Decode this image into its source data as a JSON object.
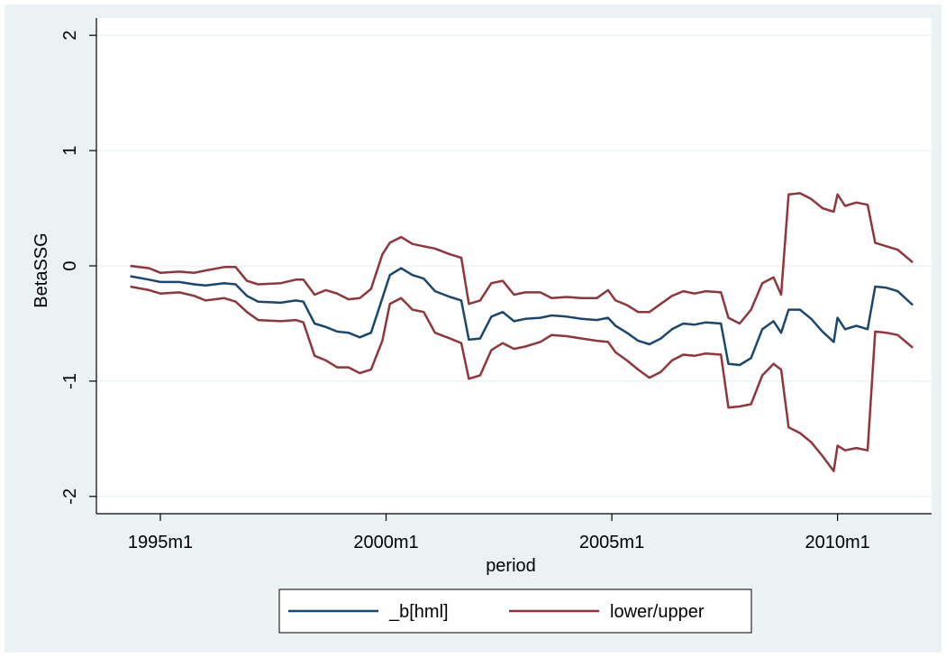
{
  "chart_data": {
    "type": "line",
    "title": "",
    "xlabel": "period",
    "ylabel": "BetaSSG",
    "x_ticks": [
      "1995m1",
      "2000m1",
      "2005m1",
      "2010m1"
    ],
    "y_ticks": [
      "-2",
      "-1",
      "0",
      "1",
      "2"
    ],
    "xlim": [
      "1993m8",
      "2012m2"
    ],
    "ylim": [
      -2.15,
      2.15
    ],
    "grid": "horizontal",
    "legend_position": "bottom",
    "legend": [
      "_b[hml]",
      "lower/upper"
    ],
    "series": [
      {
        "name": "_b[hml]",
        "color": "#1a476f",
        "points": [
          [
            "1994m5",
            -0.09
          ],
          [
            "1994m10",
            -0.12
          ],
          [
            "1995m1",
            -0.14
          ],
          [
            "1995m6",
            -0.14
          ],
          [
            "1995m10",
            -0.16
          ],
          [
            "1996m1",
            -0.17
          ],
          [
            "1996m6",
            -0.15
          ],
          [
            "1996m9",
            -0.16
          ],
          [
            "1996m12",
            -0.26
          ],
          [
            "1997m3",
            -0.31
          ],
          [
            "1997m9",
            -0.32
          ],
          [
            "1998m1",
            -0.3
          ],
          [
            "1998m3",
            -0.31
          ],
          [
            "1998m6",
            -0.5
          ],
          [
            "1998m9",
            -0.53
          ],
          [
            "1998m12",
            -0.57
          ],
          [
            "1999m3",
            -0.58
          ],
          [
            "1999m6",
            -0.62
          ],
          [
            "1999m9",
            -0.58
          ],
          [
            "1999m12",
            -0.28
          ],
          [
            "2000m2",
            -0.08
          ],
          [
            "2000m5",
            -0.02
          ],
          [
            "2000m8",
            -0.08
          ],
          [
            "2000m11",
            -0.11
          ],
          [
            "2001m2",
            -0.22
          ],
          [
            "2001m6",
            -0.27
          ],
          [
            "2001m9",
            -0.3
          ],
          [
            "2001m11",
            -0.64
          ],
          [
            "2002m2",
            -0.63
          ],
          [
            "2002m5",
            -0.44
          ],
          [
            "2002m8",
            -0.4
          ],
          [
            "2002m11",
            -0.48
          ],
          [
            "2003m2",
            -0.46
          ],
          [
            "2003m6",
            -0.45
          ],
          [
            "2003m9",
            -0.43
          ],
          [
            "2004m1",
            -0.44
          ],
          [
            "2004m5",
            -0.46
          ],
          [
            "2004m9",
            -0.47
          ],
          [
            "2004m12",
            -0.45
          ],
          [
            "2005m2",
            -0.52
          ],
          [
            "2005m5",
            -0.58
          ],
          [
            "2005m8",
            -0.65
          ],
          [
            "2005m11",
            -0.68
          ],
          [
            "2006m2",
            -0.63
          ],
          [
            "2006m5",
            -0.55
          ],
          [
            "2006m8",
            -0.5
          ],
          [
            "2006m11",
            -0.51
          ],
          [
            "2007m2",
            -0.49
          ],
          [
            "2007m6",
            -0.5
          ],
          [
            "2007m8",
            -0.85
          ],
          [
            "2007m11",
            -0.86
          ],
          [
            "2008m2",
            -0.8
          ],
          [
            "2008m5",
            -0.55
          ],
          [
            "2008m8",
            -0.48
          ],
          [
            "2008m10",
            -0.58
          ],
          [
            "2008m12",
            -0.38
          ],
          [
            "2009m3",
            -0.38
          ],
          [
            "2009m6",
            -0.46
          ],
          [
            "2009m9",
            -0.57
          ],
          [
            "2009m12",
            -0.66
          ],
          [
            "2010m1",
            -0.45
          ],
          [
            "2010m3",
            -0.55
          ],
          [
            "2010m6",
            -0.52
          ],
          [
            "2010m9",
            -0.55
          ],
          [
            "2010m11",
            -0.18
          ],
          [
            "2011m2",
            -0.19
          ],
          [
            "2011m5",
            -0.22
          ],
          [
            "2011m9",
            -0.34
          ]
        ]
      },
      {
        "name": "lower/upper",
        "color": "#90353b",
        "points": [
          [
            "1994m5",
            0.0
          ],
          [
            "1994m10",
            -0.02
          ],
          [
            "1995m1",
            -0.06
          ],
          [
            "1995m6",
            -0.05
          ],
          [
            "1995m10",
            -0.06
          ],
          [
            "1996m1",
            -0.04
          ],
          [
            "1996m6",
            -0.01
          ],
          [
            "1996m9",
            -0.01
          ],
          [
            "1996m12",
            -0.13
          ],
          [
            "1997m3",
            -0.16
          ],
          [
            "1997m9",
            -0.15
          ],
          [
            "1998m1",
            -0.12
          ],
          [
            "1998m3",
            -0.12
          ],
          [
            "1998m6",
            -0.25
          ],
          [
            "1998m9",
            -0.21
          ],
          [
            "1998m12",
            -0.24
          ],
          [
            "1999m3",
            -0.29
          ],
          [
            "1999m6",
            -0.28
          ],
          [
            "1999m9",
            -0.2
          ],
          [
            "1999m12",
            0.1
          ],
          [
            "2000m2",
            0.2
          ],
          [
            "2000m5",
            0.25
          ],
          [
            "2000m8",
            0.19
          ],
          [
            "2000m11",
            0.17
          ],
          [
            "2001m2",
            0.15
          ],
          [
            "2001m6",
            0.1
          ],
          [
            "2001m9",
            0.07
          ],
          [
            "2001m11",
            -0.33
          ],
          [
            "2002m2",
            -0.3
          ],
          [
            "2002m5",
            -0.15
          ],
          [
            "2002m8",
            -0.13
          ],
          [
            "2002m11",
            -0.25
          ],
          [
            "2003m2",
            -0.23
          ],
          [
            "2003m6",
            -0.23
          ],
          [
            "2003m9",
            -0.28
          ],
          [
            "2004m1",
            -0.27
          ],
          [
            "2004m5",
            -0.28
          ],
          [
            "2004m9",
            -0.28
          ],
          [
            "2004m12",
            -0.21
          ],
          [
            "2005m2",
            -0.3
          ],
          [
            "2005m5",
            -0.34
          ],
          [
            "2005m8",
            -0.4
          ],
          [
            "2005m11",
            -0.4
          ],
          [
            "2006m2",
            -0.33
          ],
          [
            "2006m5",
            -0.26
          ],
          [
            "2006m8",
            -0.22
          ],
          [
            "2006m11",
            -0.24
          ],
          [
            "2007m2",
            -0.22
          ],
          [
            "2007m6",
            -0.23
          ],
          [
            "2007m8",
            -0.45
          ],
          [
            "2007m11",
            -0.5
          ],
          [
            "2008m2",
            -0.38
          ],
          [
            "2008m5",
            -0.15
          ],
          [
            "2008m8",
            -0.1
          ],
          [
            "2008m10",
            -0.25
          ],
          [
            "2008m12",
            0.62
          ],
          [
            "2009m3",
            0.63
          ],
          [
            "2009m6",
            0.58
          ],
          [
            "2009m9",
            0.5
          ],
          [
            "2009m12",
            0.47
          ],
          [
            "2010m1",
            0.62
          ],
          [
            "2010m3",
            0.52
          ],
          [
            "2010m6",
            0.55
          ],
          [
            "2010m9",
            0.53
          ],
          [
            "2010m11",
            0.2
          ],
          [
            "2011m2",
            0.17
          ],
          [
            "2011m5",
            0.14
          ],
          [
            "2011m9",
            0.03
          ]
        ]
      },
      {
        "name": "",
        "color": "#90353b",
        "points": [
          [
            "1994m5",
            -0.18
          ],
          [
            "1994m10",
            -0.21
          ],
          [
            "1995m1",
            -0.24
          ],
          [
            "1995m6",
            -0.23
          ],
          [
            "1995m10",
            -0.26
          ],
          [
            "1996m1",
            -0.3
          ],
          [
            "1996m6",
            -0.28
          ],
          [
            "1996m9",
            -0.31
          ],
          [
            "1996m12",
            -0.4
          ],
          [
            "1997m3",
            -0.47
          ],
          [
            "1997m9",
            -0.48
          ],
          [
            "1998m1",
            -0.47
          ],
          [
            "1998m3",
            -0.49
          ],
          [
            "1998m6",
            -0.78
          ],
          [
            "1998m9",
            -0.82
          ],
          [
            "1998m12",
            -0.88
          ],
          [
            "1999m3",
            -0.88
          ],
          [
            "1999m6",
            -0.93
          ],
          [
            "1999m9",
            -0.9
          ],
          [
            "1999m12",
            -0.65
          ],
          [
            "2000m2",
            -0.33
          ],
          [
            "2000m5",
            -0.28
          ],
          [
            "2000m8",
            -0.38
          ],
          [
            "2000m11",
            -0.4
          ],
          [
            "2001m2",
            -0.58
          ],
          [
            "2001m6",
            -0.63
          ],
          [
            "2001m9",
            -0.67
          ],
          [
            "2001m11",
            -0.98
          ],
          [
            "2002m2",
            -0.95
          ],
          [
            "2002m5",
            -0.73
          ],
          [
            "2002m8",
            -0.67
          ],
          [
            "2002m11",
            -0.72
          ],
          [
            "2003m2",
            -0.7
          ],
          [
            "2003m6",
            -0.66
          ],
          [
            "2003m9",
            -0.6
          ],
          [
            "2004m1",
            -0.61
          ],
          [
            "2004m5",
            -0.63
          ],
          [
            "2004m9",
            -0.65
          ],
          [
            "2004m12",
            -0.66
          ],
          [
            "2005m2",
            -0.75
          ],
          [
            "2005m5",
            -0.82
          ],
          [
            "2005m8",
            -0.9
          ],
          [
            "2005m11",
            -0.97
          ],
          [
            "2006m2",
            -0.92
          ],
          [
            "2006m5",
            -0.82
          ],
          [
            "2006m8",
            -0.77
          ],
          [
            "2006m11",
            -0.78
          ],
          [
            "2007m2",
            -0.76
          ],
          [
            "2007m6",
            -0.77
          ],
          [
            "2007m8",
            -1.23
          ],
          [
            "2007m11",
            -1.22
          ],
          [
            "2008m2",
            -1.2
          ],
          [
            "2008m5",
            -0.95
          ],
          [
            "2008m8",
            -0.85
          ],
          [
            "2008m10",
            -0.9
          ],
          [
            "2008m12",
            -1.4
          ],
          [
            "2009m3",
            -1.45
          ],
          [
            "2009m6",
            -1.53
          ],
          [
            "2009m9",
            -1.65
          ],
          [
            "2009m12",
            -1.78
          ],
          [
            "2010m1",
            -1.56
          ],
          [
            "2010m3",
            -1.6
          ],
          [
            "2010m6",
            -1.58
          ],
          [
            "2010m9",
            -1.6
          ],
          [
            "2010m11",
            -0.57
          ],
          [
            "2011m2",
            -0.58
          ],
          [
            "2011m5",
            -0.6
          ],
          [
            "2011m9",
            -0.71
          ]
        ]
      }
    ]
  }
}
